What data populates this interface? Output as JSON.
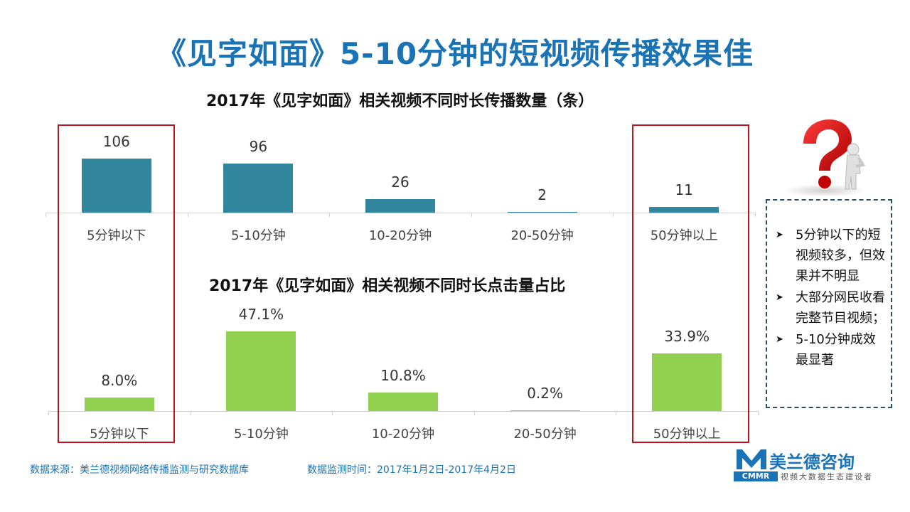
{
  "title": "《见字如面》5-10分钟的短视频传播效果佳",
  "chart1": {
    "title": "2017年《见字如面》相关视频不同时长传播数量（条）",
    "categories": [
      "5分钟以下",
      "5-10分钟",
      "10-20分钟",
      "20-50分钟",
      "50分钟以上"
    ],
    "value_labels": [
      "106",
      "96",
      "26",
      "2",
      "11"
    ]
  },
  "chart2": {
    "title": "2017年《见字如面》相关视频不同时长点击量占比",
    "categories": [
      "5分钟以下",
      "5-10分钟",
      "10-20分钟",
      "20-50分钟",
      "50分钟以上"
    ],
    "value_labels": [
      "8.0%",
      "47.1%",
      "10.8%",
      "0.2%",
      "33.9%"
    ]
  },
  "chart_data": [
    {
      "type": "bar",
      "title": "2017年《见字如面》相关视频不同时长传播数量（条）",
      "categories": [
        "5分钟以下",
        "5-10分钟",
        "10-20分钟",
        "20-50分钟",
        "50分钟以上"
      ],
      "values": [
        106,
        96,
        26,
        2,
        11
      ],
      "color": "#31859c",
      "grid": false
    },
    {
      "type": "bar",
      "title": "2017年《见字如面》相关视频不同时长点击量占比",
      "categories": [
        "5分钟以下",
        "5-10分钟",
        "10-20分钟",
        "20-50分钟",
        "50分钟以上"
      ],
      "values": [
        8.0,
        47.1,
        10.8,
        0.2,
        33.9
      ],
      "unit": "%",
      "color": "#92d050",
      "grid": false
    }
  ],
  "notes": [
    "5分钟以下的短视频较多，但效果并不明显",
    "大部分网民收看完整节目视频；",
    "5-10分钟成效最显著"
  ],
  "footer": {
    "source": "数据来源：美兰德视频网络传播监测与研究数据库",
    "time": "数据监测时间：2017年1月2日-2017年4月2日"
  },
  "logo": {
    "name": "美兰德咨询",
    "cmmr": "CMMR",
    "tagline": "视频大数据生态建设者"
  },
  "icons": {
    "note_bullet": "arrowhead-bullet-icon",
    "figure": "question-mark-figure-icon"
  },
  "colors": {
    "title": "#1a73b5",
    "bar1": "#31859c",
    "bar2": "#92d050",
    "highlight": "#c0141c"
  }
}
